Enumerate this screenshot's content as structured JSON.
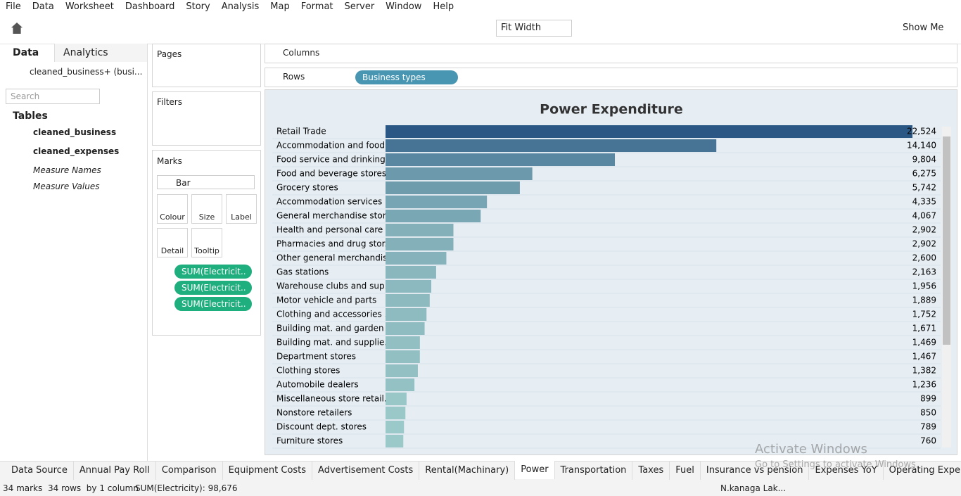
{
  "menu": [
    "File",
    "Data",
    "Worksheet",
    "Dashboard",
    "Story",
    "Analysis",
    "Map",
    "Format",
    "Server",
    "Window",
    "Help"
  ],
  "toolbar": {
    "fit": "Fit Width",
    "show_me": "Show Me"
  },
  "sidebar": {
    "tabs": [
      "Data",
      "Analytics"
    ],
    "source": "cleaned_business+ (busi...",
    "search": "Search",
    "tables_heading": "Tables",
    "tables": [
      "cleaned_business",
      "cleaned_expenses"
    ],
    "measures": [
      "Measure Names",
      "Measure Values"
    ]
  },
  "cards": {
    "pages": "Pages",
    "filters": "Filters",
    "marks": "Marks",
    "mark_type": "Bar",
    "buttons": [
      "Colour",
      "Size",
      "Label",
      "Detail",
      "Tooltip"
    ],
    "pills": [
      "SUM(Electricit..",
      "SUM(Electricit..",
      "SUM(Electricit.."
    ]
  },
  "shelves": {
    "columns": "Columns",
    "rows": "Rows",
    "rows_pill": "Business types"
  },
  "view": {
    "type": "bar",
    "title": "Power Expenditure",
    "categories": [
      "Retail Trade",
      "Accommodation and food ..",
      "Food service and drinking ..",
      "Food and beverage stores",
      "Grocery stores",
      "Accommodation services",
      "General merchandise stor..",
      "Health and personal care ..",
      "Pharmacies and drug stor..",
      "Other general merchandis..",
      "Gas stations",
      "Warehouse clubs and sup..",
      "Motor vehicle and parts",
      "Clothing and accessories ..",
      "Building mat. and garden ..",
      "Building mat. and supplie..",
      "Department stores",
      "Clothing stores",
      "Automobile dealers",
      "Miscellaneous store retail..",
      "Nonstore retailers",
      "Discount dept. stores",
      "Furniture stores"
    ],
    "values": [
      22524,
      14140,
      9804,
      6275,
      5742,
      4335,
      4067,
      2902,
      2902,
      2600,
      2163,
      1956,
      1889,
      1752,
      1671,
      1469,
      1467,
      1382,
      1236,
      899,
      850,
      789,
      760
    ],
    "value_labels": [
      "22,524",
      "14,140",
      "9,804",
      "6,275",
      "5,742",
      "4,335",
      "4,067",
      "2,902",
      "2,902",
      "2,600",
      "2,163",
      "1,956",
      "1,889",
      "1,752",
      "1,671",
      "1,469",
      "1,467",
      "1,382",
      "1,236",
      "899",
      "850",
      "789",
      "760"
    ],
    "color_low": "#b5e2d8",
    "color_high": "#2a5783"
  },
  "tabs": [
    "Data Source",
    "Annual Pay Roll",
    "Comparison",
    "Equipment Costs",
    "Advertisement Costs",
    "Rental(Machinary)",
    "Power",
    "Transportation",
    "Taxes",
    "Fuel",
    "Insurance vs pension",
    "Expenses YoY",
    "Operating Expenses"
  ],
  "active_tab": "Power",
  "status": {
    "marks": "34 marks",
    "rows": "34 rows  by 1 column",
    "sum": "SUM(Electricity): 98,676",
    "user": "N.kanaga Lak..."
  },
  "watermark": {
    "title": "Activate Windows",
    "subtitle": "Go to Settings to activate Windows."
  }
}
